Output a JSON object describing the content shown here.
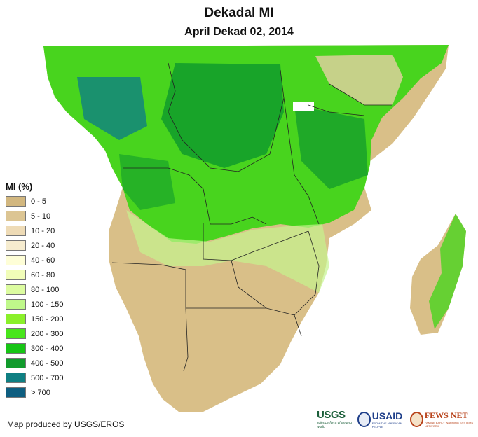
{
  "title": "Dekadal MI",
  "subtitle": "April Dekad 02, 2014",
  "legend": {
    "title": "MI (%)",
    "items": [
      {
        "label": "0 - 5",
        "color": "#d2b77f"
      },
      {
        "label": "5 - 10",
        "color": "#dcc593"
      },
      {
        "label": "10 - 20",
        "color": "#eedbb6"
      },
      {
        "label": "20 - 40",
        "color": "#f6eccf"
      },
      {
        "label": "40 - 60",
        "color": "#fefed7"
      },
      {
        "label": "60 - 80",
        "color": "#f1fdb8"
      },
      {
        "label": "80 - 100",
        "color": "#dcfca0"
      },
      {
        "label": "100 - 150",
        "color": "#bff88a"
      },
      {
        "label": "150 - 200",
        "color": "#8af02a"
      },
      {
        "label": "200 - 300",
        "color": "#48e61b"
      },
      {
        "label": "300 - 400",
        "color": "#17c515"
      },
      {
        "label": "400 - 500",
        "color": "#119b2c"
      },
      {
        "label": "500 - 700",
        "color": "#0f7f82"
      },
      {
        "label": "> 700",
        "color": "#0e5e80"
      }
    ]
  },
  "credit": "Map produced by USGS/EROS",
  "logos": {
    "usgs": "USGS",
    "usgs_tagline": "science for a changing world",
    "usaid": "USAID",
    "usaid_tagline": "FROM THE AMERICAN PEOPLE",
    "fews": "FEWS NET",
    "fews_tagline": "FAMINE EARLY WARNING SYSTEMS NETWORK"
  }
}
